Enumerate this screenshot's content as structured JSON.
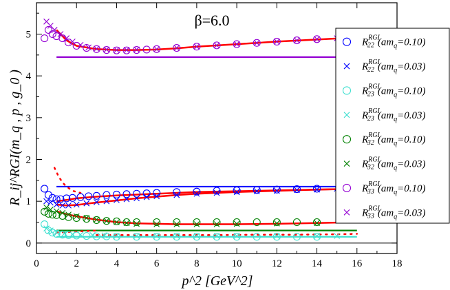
{
  "chart_data": {
    "type": "scatter",
    "title": "β=6.0",
    "xlabel": "p^2 [GeV^2]",
    "ylabel": "R_ij^RGI(m_q , p , g_0 )",
    "xlim": [
      0,
      18
    ],
    "ylim": [
      -0.25,
      5.75
    ],
    "xticks": [
      "0",
      "2",
      "4",
      "6",
      "8",
      "10",
      "12",
      "14",
      "16",
      "18"
    ],
    "yticks": [
      "0",
      "1",
      "2",
      "3",
      "4",
      "5"
    ],
    "legend_position": "right",
    "zero_line": true,
    "legend": [
      {
        "sym": "R",
        "sup": "RGI",
        "sub": "22",
        "mass": "(am",
        "mass_sub": "q",
        "mass_val": "=0.10)",
        "marker": "circle",
        "color": "#0000ff"
      },
      {
        "sym": "R",
        "sup": "RGI",
        "sub": "22",
        "mass": "(am",
        "mass_sub": "q",
        "mass_val": "=0.03)",
        "marker": "x",
        "color": "#0000ff"
      },
      {
        "sym": "R",
        "sup": "RGI",
        "sub": "23",
        "mass": "(am",
        "mass_sub": "q",
        "mass_val": "=0.10)",
        "marker": "circle",
        "color": "#40e0d0"
      },
      {
        "sym": "R",
        "sup": "RGI",
        "sub": "23",
        "mass": "(am",
        "mass_sub": "q",
        "mass_val": "=0.03)",
        "marker": "x",
        "color": "#40e0d0"
      },
      {
        "sym": "R",
        "sup": "RGI",
        "sub": "32",
        "mass": "(am",
        "mass_sub": "q",
        "mass_val": "=0.10)",
        "marker": "circle",
        "color": "#008000"
      },
      {
        "sym": "R",
        "sup": "RGI",
        "sub": "32",
        "mass": "(am",
        "mass_sub": "q",
        "mass_val": "=0.03)",
        "marker": "x",
        "color": "#008000"
      },
      {
        "sym": "R",
        "sup": "RGI",
        "sub": "33",
        "mass": "(am",
        "mass_sub": "q",
        "mass_val": "=0.10)",
        "marker": "circle",
        "color": "#9400d3"
      },
      {
        "sym": "R",
        "sup": "RGI",
        "sub": "33",
        "mass": "(am",
        "mass_sub": "q",
        "mass_val": "=0.03)",
        "marker": "x",
        "color": "#9400d3"
      }
    ],
    "series": [
      {
        "marker": "circle",
        "color": "#0000ff",
        "x": [
          0.4,
          0.6,
          0.8,
          1.0,
          1.2,
          1.5,
          1.8,
          2.2,
          2.6,
          3.0,
          3.5,
          4.0,
          4.5,
          5.0,
          5.5,
          6.0,
          7.0,
          8.0,
          9.0,
          10.0,
          11.0,
          12.0,
          13.0,
          14.0
        ],
        "y": [
          1.3,
          1.15,
          1.08,
          1.05,
          1.05,
          1.07,
          1.08,
          1.1,
          1.12,
          1.13,
          1.15,
          1.16,
          1.17,
          1.18,
          1.19,
          1.2,
          1.22,
          1.23,
          1.25,
          1.26,
          1.27,
          1.28,
          1.29,
          1.3
        ]
      },
      {
        "marker": "x",
        "color": "#0000ff",
        "x": [
          0.5,
          0.7,
          1.0,
          1.3,
          1.6,
          2.0,
          2.5,
          3.0,
          3.5,
          4.0,
          4.5,
          5.0,
          5.5,
          6.0,
          7.0,
          8.0,
          9.0,
          10.0,
          11.0,
          12.0,
          13.0,
          14.0,
          15.0
        ],
        "y": [
          1.0,
          0.97,
          0.92,
          0.9,
          0.9,
          0.92,
          0.95,
          0.98,
          1.0,
          1.03,
          1.05,
          1.07,
          1.1,
          1.12,
          1.15,
          1.18,
          1.2,
          1.22,
          1.24,
          1.25,
          1.27,
          1.28,
          1.3
        ]
      },
      {
        "marker": "circle",
        "color": "#40e0d0",
        "x": [
          0.4,
          0.6,
          0.8,
          1.0,
          1.3,
          1.6,
          2.0,
          2.5,
          3.0,
          3.5,
          4.0,
          5.0,
          6.0,
          7.0,
          8.0,
          9.0,
          10.0,
          11.0,
          12.0,
          13.0,
          14.0
        ],
        "y": [
          0.45,
          0.3,
          0.25,
          0.22,
          0.2,
          0.19,
          0.18,
          0.17,
          0.16,
          0.16,
          0.15,
          0.15,
          0.15,
          0.15,
          0.15,
          0.15,
          0.15,
          0.15,
          0.15,
          0.15,
          0.15
        ]
      },
      {
        "marker": "x",
        "color": "#40e0d0",
        "x": [
          0.5,
          0.7,
          1.0,
          1.4,
          1.8,
          2.2,
          2.8,
          3.4,
          4.0,
          5.0,
          6.0,
          7.0,
          8.0,
          9.0,
          10.0,
          12.0,
          14.0,
          15.0
        ],
        "y": [
          0.35,
          0.3,
          0.26,
          0.23,
          0.21,
          0.2,
          0.19,
          0.18,
          0.17,
          0.17,
          0.17,
          0.17,
          0.17,
          0.17,
          0.17,
          0.17,
          0.17,
          0.17
        ]
      },
      {
        "marker": "circle",
        "color": "#008000",
        "x": [
          0.4,
          0.6,
          0.8,
          1.0,
          1.3,
          1.6,
          2.0,
          2.5,
          3.0,
          3.5,
          4.0,
          4.5,
          5.0,
          6.0,
          7.0,
          8.0,
          9.0,
          10.0,
          11.0,
          12.0,
          13.0,
          14.0
        ],
        "y": [
          0.75,
          0.7,
          0.68,
          0.67,
          0.65,
          0.62,
          0.6,
          0.58,
          0.55,
          0.53,
          0.52,
          0.5,
          0.5,
          0.5,
          0.5,
          0.5,
          0.5,
          0.5,
          0.5,
          0.5,
          0.5,
          0.5
        ]
      },
      {
        "marker": "x",
        "color": "#008000",
        "x": [
          0.5,
          0.7,
          1.0,
          1.3,
          1.6,
          2.0,
          2.5,
          3.0,
          3.5,
          4.0,
          4.5,
          5.0,
          6.0,
          7.0,
          8.0,
          9.0,
          10.0,
          12.0,
          14.0
        ],
        "y": [
          0.85,
          0.8,
          0.76,
          0.72,
          0.68,
          0.64,
          0.6,
          0.56,
          0.53,
          0.5,
          0.48,
          0.46,
          0.45,
          0.45,
          0.45,
          0.45,
          0.46,
          0.47,
          0.48
        ]
      },
      {
        "marker": "circle",
        "color": "#9400d3",
        "x": [
          0.4,
          0.6,
          0.8,
          1.0,
          1.3,
          1.6,
          2.0,
          2.5,
          3.0,
          3.5,
          4.0,
          4.5,
          5.0,
          5.5,
          6.0,
          7.0,
          8.0,
          9.0,
          10.0,
          11.0,
          12.0,
          13.0,
          14.0
        ],
        "y": [
          4.9,
          5.1,
          5.0,
          4.95,
          4.9,
          4.8,
          4.72,
          4.67,
          4.64,
          4.62,
          4.61,
          4.61,
          4.62,
          4.63,
          4.64,
          4.67,
          4.7,
          4.73,
          4.76,
          4.79,
          4.82,
          4.85,
          4.88
        ]
      },
      {
        "marker": "x",
        "color": "#9400d3",
        "x": [
          0.5,
          0.7,
          0.9,
          1.2,
          1.5,
          1.8,
          2.2,
          2.6,
          3.0,
          3.5,
          4.0,
          4.5,
          5.0,
          6.0,
          7.0,
          8.0,
          9.0,
          10.0,
          11.0,
          12.0,
          13.0,
          14.0,
          15.0
        ],
        "y": [
          5.3,
          5.2,
          5.1,
          5.0,
          4.9,
          4.82,
          4.74,
          4.68,
          4.65,
          4.63,
          4.62,
          4.62,
          4.63,
          4.64,
          4.67,
          4.7,
          4.73,
          4.76,
          4.79,
          4.82,
          4.85,
          4.88,
          4.9
        ]
      }
    ],
    "fit_curves": [
      {
        "color": "#ff0000",
        "x": [
          1.0,
          1.5,
          2.0,
          3.0,
          4.0,
          5.0,
          6.0,
          7.0,
          8.0,
          10.0,
          12.0,
          14.0,
          16.0
        ],
        "y": [
          5.1,
          4.85,
          4.72,
          4.64,
          4.62,
          4.62,
          4.63,
          4.66,
          4.7,
          4.76,
          4.82,
          4.87,
          4.92
        ]
      },
      {
        "color": "#ff0000",
        "x": [
          1.0,
          1.5,
          2.0,
          3.0,
          4.0,
          5.0,
          6.0,
          7.0,
          8.0,
          10.0,
          12.0,
          14.0,
          16.0
        ],
        "y": [
          1.0,
          1.03,
          1.07,
          1.11,
          1.14,
          1.16,
          1.18,
          1.2,
          1.22,
          1.24,
          1.26,
          1.28,
          1.3
        ]
      },
      {
        "color": "#ff0000",
        "x": [
          1.0,
          1.5,
          2.0,
          3.0,
          4.0,
          5.0,
          6.0,
          7.0,
          8.0,
          10.0,
          12.0,
          14.0,
          16.0
        ],
        "y": [
          0.92,
          0.9,
          0.91,
          0.97,
          1.02,
          1.07,
          1.11,
          1.15,
          1.18,
          1.22,
          1.25,
          1.28,
          1.3
        ]
      },
      {
        "color": "#ff0000",
        "x": [
          1.0,
          1.5,
          2.0,
          3.0,
          4.0,
          5.0,
          6.0,
          7.0,
          8.0,
          10.0,
          12.0,
          14.0,
          15.0
        ],
        "y": [
          0.76,
          0.69,
          0.64,
          0.56,
          0.5,
          0.47,
          0.46,
          0.45,
          0.45,
          0.45,
          0.46,
          0.48,
          0.49
        ]
      }
    ],
    "fit_dotted": [
      {
        "color": "#ff0000",
        "x": [
          0.9,
          1.1,
          1.3,
          1.5,
          1.8,
          2.2
        ],
        "y": [
          1.8,
          1.6,
          1.45,
          1.35,
          1.25,
          1.2
        ]
      },
      {
        "color": "#ff0000",
        "x": [
          3.0,
          5.0,
          7.0,
          9.0,
          11.0,
          13.0,
          15.0,
          16.0
        ],
        "y": [
          0.19,
          0.19,
          0.19,
          0.19,
          0.2,
          0.2,
          0.21,
          0.22
        ]
      },
      {
        "color": "#ff0000",
        "x": [
          1.0,
          1.4,
          1.8,
          2.2,
          2.6,
          3.0
        ],
        "y": [
          0.25,
          0.26,
          0.27,
          0.28,
          0.29,
          0.3
        ]
      }
    ],
    "plateau_lines": [
      {
        "color": "#9400d3",
        "x": [
          1.0,
          16.0
        ],
        "y": 4.45
      },
      {
        "color": "#0000ff",
        "x": [
          1.0,
          16.0
        ],
        "y": 1.35
      },
      {
        "color": "#008000",
        "x": [
          1.0,
          16.0
        ],
        "y": 0.3
      },
      {
        "color": "#40e0d0",
        "x": [
          1.0,
          16.0
        ],
        "y": 0.15
      }
    ]
  }
}
